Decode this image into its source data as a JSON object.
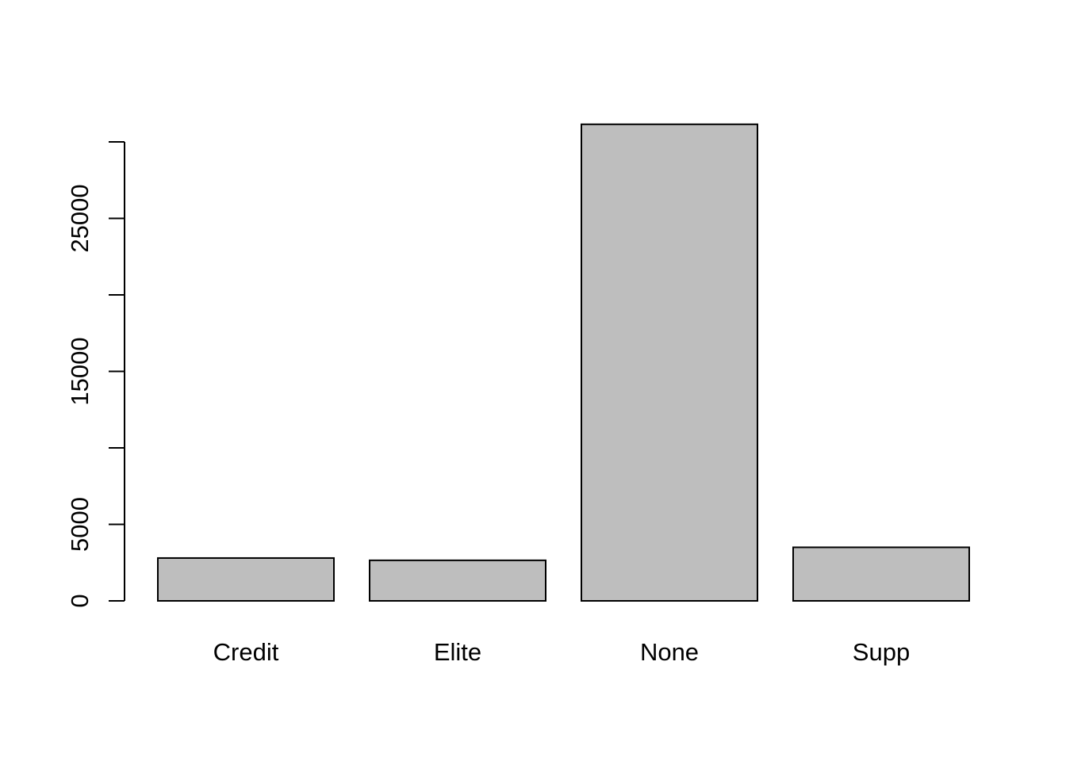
{
  "chart_data": {
    "type": "bar",
    "title": "",
    "xlabel": "",
    "ylabel": "",
    "categories": [
      "Credit",
      "Elite",
      "None",
      "Supp"
    ],
    "values": [
      2800,
      2650,
      31150,
      3500
    ],
    "ylim": [
      0,
      30000
    ],
    "y_ticks": [
      0,
      5000,
      10000,
      15000,
      20000,
      25000,
      30000
    ],
    "y_tick_labels": [
      "0",
      "5000",
      "",
      "15000",
      "",
      "25000",
      ""
    ],
    "bar_fill": "#bebebe",
    "bar_stroke": "#000000",
    "grid": false,
    "legend": "none"
  }
}
